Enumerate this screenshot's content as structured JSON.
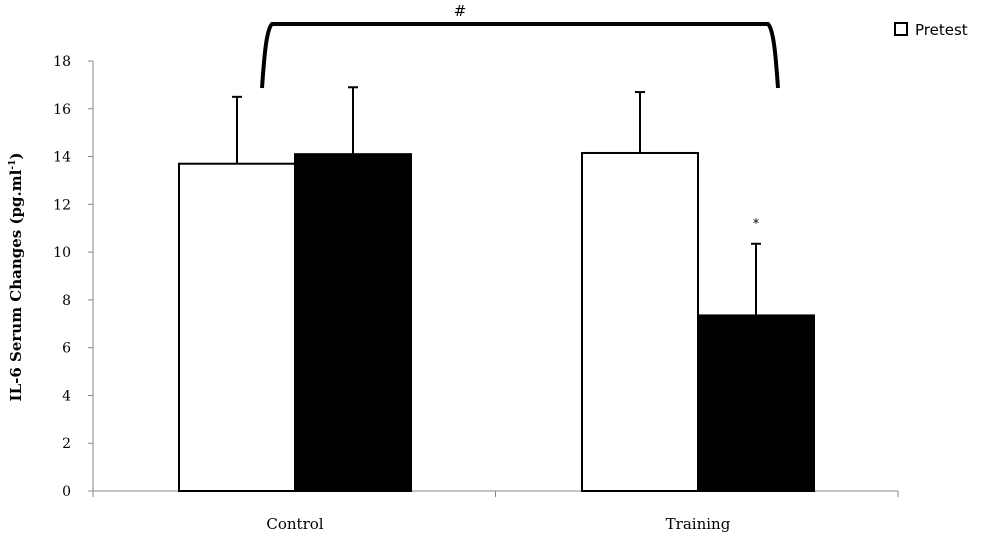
{
  "chart_data": {
    "type": "bar",
    "title": "",
    "xlabel": "",
    "ylabel": "IL-6 Serum Changes (pg.ml",
    "ylabel_sup": "-1",
    "ylabel_close": ")",
    "ylim": [
      0,
      18
    ],
    "yticks": [
      0,
      2,
      4,
      6,
      8,
      10,
      12,
      14,
      16,
      18
    ],
    "categories": [
      "Control",
      "Training"
    ],
    "series": [
      {
        "name": "Pretest",
        "color": "#ffffff",
        "values": [
          13.7,
          14.15
        ],
        "errors": [
          2.8,
          2.55
        ]
      },
      {
        "color": "#000000",
        "values": [
          14.1,
          7.35
        ],
        "errors": [
          2.8,
          3.0
        ]
      }
    ],
    "legend": {
      "position": "top-right",
      "entries": [
        "Pretest"
      ]
    },
    "annotations": {
      "bracket_symbol": "#",
      "significance_symbol": "*"
    }
  }
}
